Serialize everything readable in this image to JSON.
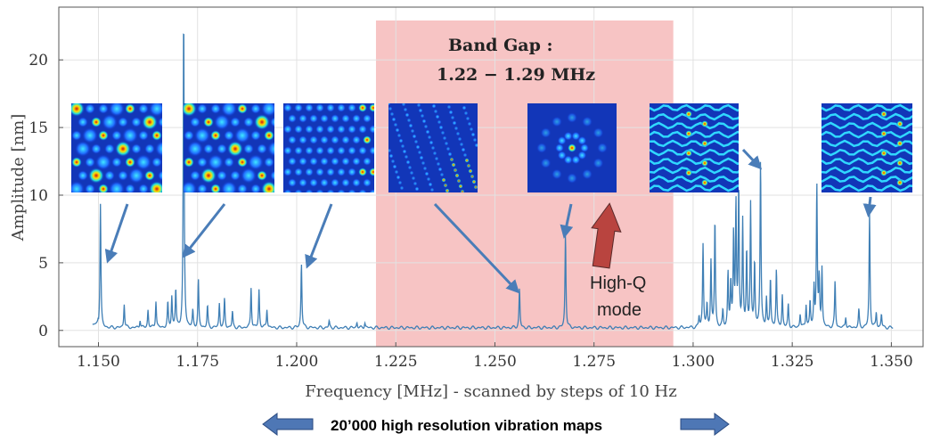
{
  "chart_data": {
    "type": "line",
    "xlabel": "Frequency [MHz] - scanned by steps of 10 Hz",
    "ylabel": "Amplitude [nm]",
    "xlim": [
      1.14,
      1.358
    ],
    "ylim": [
      -1.2,
      23.9
    ],
    "xticks": [
      "1.150",
      "1.175",
      "1.200",
      "1.225",
      "1.250",
      "1.275",
      "1.300",
      "1.325",
      "1.350"
    ],
    "yticks": [
      "0",
      "5",
      "10",
      "15",
      "20"
    ],
    "grid": true,
    "band_gap": {
      "x_start": 1.22,
      "x_end": 1.295,
      "color": "#f7c4c4"
    },
    "band_gap_label": [
      "Band Gap :",
      "1.22 − 1.29 MHz"
    ],
    "series_color": "#3f7fb5",
    "baseline": 0.2,
    "peaks": [
      {
        "x": 1.1505,
        "y": 9.2
      },
      {
        "x": 1.1565,
        "y": 1.8
      },
      {
        "x": 1.1605,
        "y": 0.6
      },
      {
        "x": 1.1625,
        "y": 1.3
      },
      {
        "x": 1.1645,
        "y": 2.0
      },
      {
        "x": 1.1675,
        "y": 1.8
      },
      {
        "x": 1.1685,
        "y": 2.3
      },
      {
        "x": 1.1695,
        "y": 2.8
      },
      {
        "x": 1.1715,
        "y": 23.3
      },
      {
        "x": 1.1738,
        "y": 1.2
      },
      {
        "x": 1.1752,
        "y": 3.5
      },
      {
        "x": 1.1775,
        "y": 1.6
      },
      {
        "x": 1.1805,
        "y": 1.8
      },
      {
        "x": 1.1818,
        "y": 2.1
      },
      {
        "x": 1.1838,
        "y": 1.2
      },
      {
        "x": 1.1885,
        "y": 3.0
      },
      {
        "x": 1.1905,
        "y": 2.8
      },
      {
        "x": 1.1925,
        "y": 1.4
      },
      {
        "x": 1.2012,
        "y": 4.8
      },
      {
        "x": 1.2082,
        "y": 0.5
      },
      {
        "x": 1.2152,
        "y": 0.4
      },
      {
        "x": 1.2172,
        "y": 0.4
      },
      {
        "x": 1.2562,
        "y": 2.9
      },
      {
        "x": 1.2678,
        "y": 7.0
      },
      {
        "x": 1.3015,
        "y": 0.8
      },
      {
        "x": 1.3025,
        "y": 6.2
      },
      {
        "x": 1.3035,
        "y": 1.6
      },
      {
        "x": 1.3045,
        "y": 4.9
      },
      {
        "x": 1.3055,
        "y": 8.0
      },
      {
        "x": 1.3075,
        "y": 1.2
      },
      {
        "x": 1.3088,
        "y": 4.0
      },
      {
        "x": 1.3095,
        "y": 3.2
      },
      {
        "x": 1.3102,
        "y": 6.8
      },
      {
        "x": 1.3108,
        "y": 9.0
      },
      {
        "x": 1.3115,
        "y": 10.2
      },
      {
        "x": 1.3125,
        "y": 7.8
      },
      {
        "x": 1.3135,
        "y": 5.5
      },
      {
        "x": 1.3145,
        "y": 9.2
      },
      {
        "x": 1.3155,
        "y": 4.8
      },
      {
        "x": 1.317,
        "y": 12.4
      },
      {
        "x": 1.3185,
        "y": 2.2
      },
      {
        "x": 1.3195,
        "y": 3.6
      },
      {
        "x": 1.321,
        "y": 4.3
      },
      {
        "x": 1.3225,
        "y": 2.4
      },
      {
        "x": 1.324,
        "y": 1.7
      },
      {
        "x": 1.327,
        "y": 1.0
      },
      {
        "x": 1.3285,
        "y": 1.7
      },
      {
        "x": 1.3295,
        "y": 1.9
      },
      {
        "x": 1.3305,
        "y": 2.9
      },
      {
        "x": 1.3312,
        "y": 10.5
      },
      {
        "x": 1.3318,
        "y": 3.4
      },
      {
        "x": 1.3325,
        "y": 4.4
      },
      {
        "x": 1.3358,
        "y": 3.4
      },
      {
        "x": 1.3385,
        "y": 0.8
      },
      {
        "x": 1.3418,
        "y": 1.3
      },
      {
        "x": 1.3445,
        "y": 8.5
      },
      {
        "x": 1.3462,
        "y": 1.1
      },
      {
        "x": 1.3475,
        "y": 1.0
      }
    ],
    "annotation": "High-Q\nmode",
    "inset_maps": [
      {
        "name": "map-1",
        "palette": "star"
      },
      {
        "name": "map-2",
        "palette": "star"
      },
      {
        "name": "map-3",
        "palette": "diffuse"
      },
      {
        "name": "map-4",
        "palette": "noise"
      },
      {
        "name": "map-5",
        "palette": "ring"
      },
      {
        "name": "map-6",
        "palette": "wave"
      },
      {
        "name": "map-7",
        "palette": "wave"
      }
    ]
  },
  "footer": {
    "caption": "20’000 high resolution  vibration maps"
  }
}
